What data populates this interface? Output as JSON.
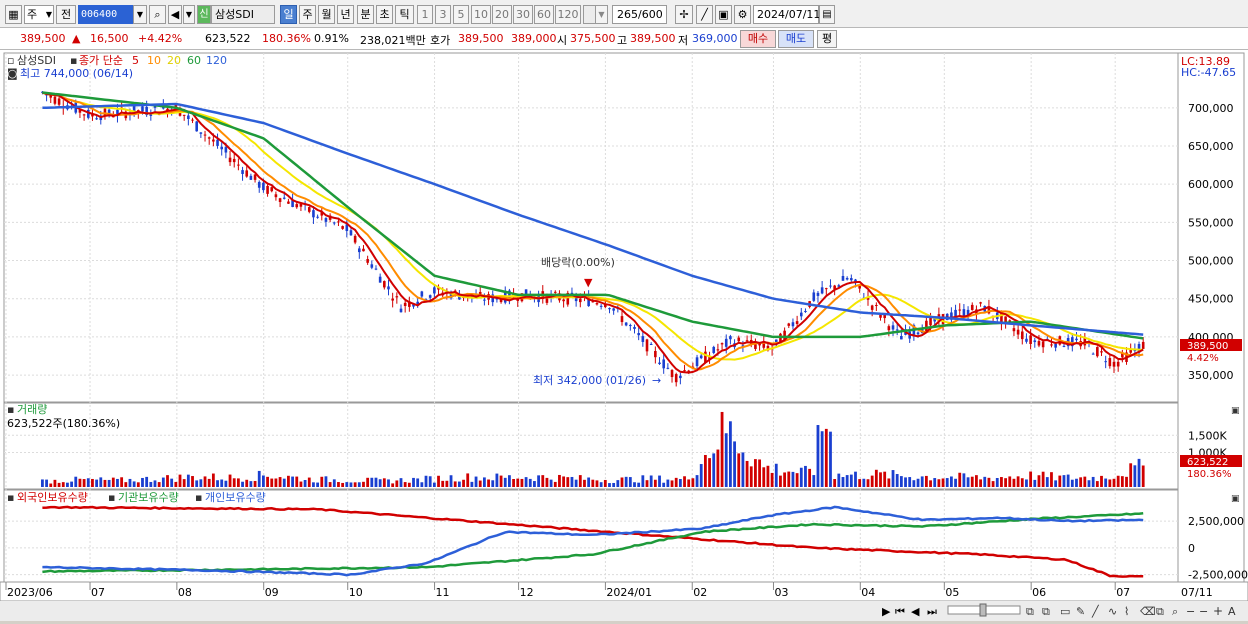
{
  "toolbar": {
    "period_select": "주",
    "prev_label": "전",
    "stock_code": "006400",
    "credit_badge": "신",
    "stock_name": "삼성SDI",
    "periods": [
      "일",
      "주",
      "월",
      "년",
      "분",
      "초",
      "틱"
    ],
    "active_period": "일",
    "intervals": [
      "1",
      "3",
      "5",
      "10",
      "20",
      "30",
      "60",
      "120"
    ],
    "count": "265",
    "max_count": "/600",
    "date": "2024/07/11"
  },
  "info": {
    "price": "389,500",
    "change_arrow": "▲",
    "change": "16,500",
    "change_pct": "+4.42%",
    "volume": "623,522",
    "volume_ratio": "180.36%",
    "turnover": "0.91%",
    "amount": "238,021백만",
    "quote_label": "호가",
    "ask": "389,500",
    "bid": "389,000",
    "open_label": "시",
    "open": "375,500",
    "high_label": "고",
    "high": "389,500",
    "low_label": "저",
    "low": "369,000",
    "buy_label": "매수",
    "sell_label": "매도",
    "eval_label": "평"
  },
  "price_panel": {
    "legend_name": "삼성SDI",
    "legend_price": "종가 단순",
    "ma_periods": [
      "5",
      "10",
      "20",
      "60",
      "120"
    ],
    "high_marker": "최고 744,000 (06/14)",
    "low_marker": "최저 342,000 (01/26)",
    "dividend_marker": "배당락(0.00%)",
    "lc": "LC:13.89",
    "hc": "HC:-47.65",
    "y_ticks": [
      "700,000",
      "650,000",
      "600,000",
      "550,000",
      "500,000",
      "450,000",
      "400,000",
      "350,000"
    ],
    "last_price_tag": "389,500",
    "last_pct_tag": "4.42%"
  },
  "volume_panel": {
    "title": "거래량",
    "subtitle": "623,522주(180.36%)",
    "y_ticks": [
      "1,500K",
      "1,000K"
    ],
    "last_tag": "623,522",
    "last_pct_tag": "180.36%"
  },
  "holding_panel": {
    "legend_foreign": "외국인보유수량",
    "legend_inst": "기관보유수량",
    "legend_indiv": "개인보유수량",
    "y_ticks": [
      "2,500,000",
      "0",
      "-2,500,000"
    ]
  },
  "x_axis": [
    "2023/06",
    "07",
    "08",
    "09",
    "10",
    "11",
    "12",
    "2024/01",
    "02",
    "03",
    "04",
    "05",
    "06",
    "07",
    "07/11"
  ],
  "colors": {
    "up": "#d10000",
    "down": "#1a3fd0",
    "ma5": "#d10000",
    "ma10": "#ff8c00",
    "ma20": "#f5e600",
    "ma60": "#1e9a3a",
    "ma120": "#2d5fd8"
  },
  "chart_data": {
    "type": "line",
    "title": "삼성SDI",
    "x_ticks": [
      "2023/06",
      "07",
      "08",
      "09",
      "10",
      "11",
      "12",
      "2024/01",
      "02",
      "03",
      "04",
      "05",
      "06",
      "07"
    ],
    "ylim": [
      320000,
      760000
    ],
    "series": [
      {
        "name": "종가",
        "x": [
          "2023-06-14",
          "2023-07-01",
          "2023-08-01",
          "2023-09-01",
          "2023-10-01",
          "2023-10-20",
          "2023-11-01",
          "2023-11-20",
          "2023-12-01",
          "2023-12-20",
          "2024-01-02",
          "2024-01-26",
          "2024-02-15",
          "2024-03-01",
          "2024-03-15",
          "2024-03-28",
          "2024-04-15",
          "2024-05-01",
          "2024-05-15",
          "2024-06-01",
          "2024-06-20",
          "2024-07-01",
          "2024-07-11"
        ],
        "values": [
          720000,
          690000,
          700000,
          595000,
          540000,
          440000,
          460000,
          450000,
          455000,
          450000,
          445000,
          348000,
          395000,
          385000,
          450000,
          478000,
          400000,
          425000,
          440000,
          395000,
          392000,
          365000,
          389500
        ]
      },
      {
        "name": "120",
        "x": [
          "2023-06-14",
          "2023-08-01",
          "2023-09-01",
          "2023-10-01",
          "2023-11-01",
          "2023-12-01",
          "2024-01-02",
          "2024-02-01",
          "2024-03-01",
          "2024-04-01",
          "2024-05-01",
          "2024-06-01",
          "2024-07-11"
        ],
        "values": [
          700000,
          705000,
          680000,
          640000,
          600000,
          560000,
          520000,
          480000,
          450000,
          432000,
          425000,
          415000,
          403000
        ]
      },
      {
        "name": "60",
        "x": [
          "2023-06-14",
          "2023-08-01",
          "2023-09-01",
          "2023-10-01",
          "2023-11-01",
          "2023-12-01",
          "2024-01-02",
          "2024-02-01",
          "2024-03-01",
          "2024-04-01",
          "2024-05-01",
          "2024-06-01",
          "2024-07-11"
        ],
        "values": [
          720000,
          700000,
          660000,
          570000,
          480000,
          455000,
          455000,
          420000,
          400000,
          400000,
          415000,
          420000,
          398000
        ]
      }
    ],
    "volume_k": [
      180,
      220,
      200,
      250,
      310,
      280,
      360,
      240,
      210,
      190,
      230,
      300,
      290,
      310,
      260,
      220,
      250,
      240,
      1800,
      600,
      450,
      350,
      380,
      320,
      300,
      280,
      350,
      280,
      300,
      623
    ]
  }
}
